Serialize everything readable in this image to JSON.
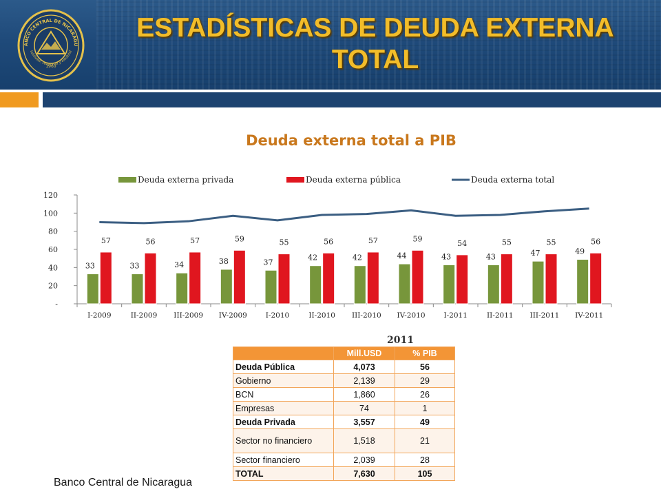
{
  "header": {
    "title": "ESTADÍSTICAS DE DEUDA EXTERNA TOTAL",
    "seal": {
      "top_text": "BANCO CENTRAL DE NICARAGUA",
      "bottom_text": "Estabilidad, confianza y estabilidad",
      "year": "1960"
    }
  },
  "chart_data": {
    "type": "bar",
    "title": "Deuda externa total a PIB",
    "categories": [
      "I-2009",
      "II-2009",
      "III-2009",
      "IV-2009",
      "I-2010",
      "II-2010",
      "III-2010",
      "IV-2010",
      "I-2011",
      "II-2011",
      "III-2011",
      "IV-2011"
    ],
    "series": [
      {
        "name": "Deuda externa privada",
        "type": "bar",
        "color": "#77963b",
        "values": [
          33,
          33,
          34,
          38,
          37,
          42,
          42,
          44,
          43,
          43,
          47,
          49
        ]
      },
      {
        "name": "Deuda externa pública",
        "type": "bar",
        "color": "#e0161f",
        "values": [
          57,
          56,
          57,
          59,
          55,
          56,
          57,
          59,
          54,
          55,
          55,
          56
        ]
      },
      {
        "name": "Deuda externa total",
        "type": "line",
        "color": "#3b5e82",
        "values": [
          90,
          89,
          91,
          97,
          92,
          98,
          99,
          103,
          97,
          98,
          102,
          105
        ]
      }
    ],
    "ylim": [
      0,
      120
    ],
    "yticks": [
      0,
      20,
      40,
      60,
      80,
      100,
      120
    ],
    "ytick_labels": [
      "-",
      "20",
      "40",
      "60",
      "80",
      "100",
      "120"
    ],
    "legend_position": "top",
    "grid": false
  },
  "table": {
    "year": "2011",
    "headers": [
      "",
      "Mill.USD",
      "% PIB"
    ],
    "rows": [
      {
        "label": "Deuda Pública",
        "usd": "4,073",
        "pct": "56",
        "bold": true
      },
      {
        "label": "Gobierno",
        "usd": "2,139",
        "pct": "29",
        "bold": false
      },
      {
        "label": "BCN",
        "usd": "1,860",
        "pct": "26",
        "bold": false
      },
      {
        "label": "Empresas",
        "usd": "74",
        "pct": "1",
        "bold": false
      },
      {
        "label": "Deuda Privada",
        "usd": "3,557",
        "pct": "49",
        "bold": true
      },
      {
        "label": "Sector no financiero",
        "usd": "1,518",
        "pct": "21",
        "bold": false
      },
      {
        "label": "Sector financiero",
        "usd": "2,039",
        "pct": "28",
        "bold": false
      },
      {
        "label": "TOTAL",
        "usd": "7,630",
        "pct": "105",
        "bold": true
      }
    ]
  },
  "footer": {
    "text": "Banco Central de Nicaragua"
  },
  "colors": {
    "title": "#f2bd2a",
    "accent_orange": "#f09a20",
    "header_blue": "#1d4370",
    "chart_title": "#c9781d"
  }
}
